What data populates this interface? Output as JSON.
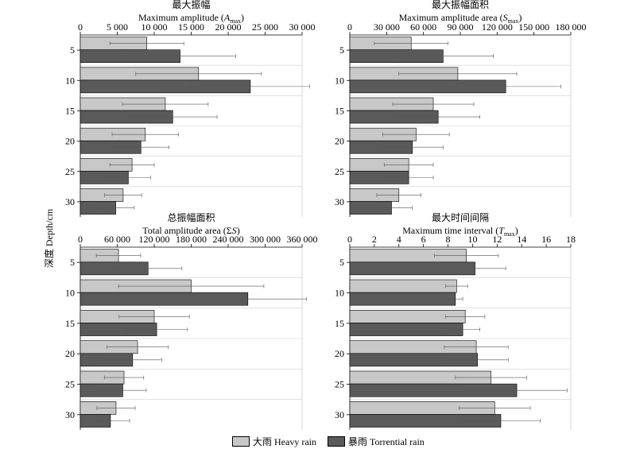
{
  "figure": {
    "y_axis_label": "深度 Depth/cm"
  },
  "legend": [
    {
      "label": "大雨 Heavy rain",
      "color": "#c8c8c8"
    },
    {
      "label": "暴雨 Torrential rain",
      "color": "#5a5a5a"
    }
  ],
  "chart_data": [
    {
      "type": "bar",
      "orientation": "horizontal",
      "title_cn": "最大振幅",
      "title_en": "Maximum amplitude (",
      "title_symbol": "A",
      "title_sub": "max",
      "title_tail": ")",
      "xlim": [
        0,
        30000
      ],
      "xticks": [
        0,
        5000,
        10000,
        15000,
        20000,
        25000,
        30000
      ],
      "xtick_labels": [
        "0",
        "5 000",
        "10 000",
        "15 000",
        "20 000",
        "25 000",
        "30 000"
      ],
      "categories": [
        "5",
        "10",
        "15",
        "20",
        "25",
        "30"
      ],
      "series": [
        {
          "name": "大雨 Heavy rain",
          "color": "#c8c8c8",
          "values": [
            9000,
            16000,
            11500,
            8800,
            7000,
            5800
          ],
          "errors": [
            5000,
            8500,
            5800,
            4500,
            3000,
            2500
          ]
        },
        {
          "name": "暴雨 Torrential rain",
          "color": "#5a5a5a",
          "values": [
            13500,
            23000,
            12500,
            8200,
            6500,
            4800
          ],
          "errors": [
            7500,
            8000,
            6000,
            3800,
            3000,
            2500
          ]
        }
      ]
    },
    {
      "type": "bar",
      "orientation": "horizontal",
      "title_cn": "最大振幅面积",
      "title_en": "Maximum amplitude area (",
      "title_symbol": "S",
      "title_sub": "max",
      "title_tail": ")",
      "xlim": [
        0,
        180000
      ],
      "xticks": [
        0,
        30000,
        60000,
        90000,
        120000,
        150000,
        180000
      ],
      "xtick_labels": [
        "0",
        "30 000",
        "60 000",
        "90 000",
        "120 000",
        "150 000",
        "180 000"
      ],
      "categories": [
        "5",
        "10",
        "15",
        "20",
        "25",
        "30"
      ],
      "series": [
        {
          "name": "大雨 Heavy rain",
          "color": "#c8c8c8",
          "values": [
            50000,
            88000,
            68000,
            54000,
            48000,
            40000
          ],
          "errors": [
            30000,
            48000,
            33000,
            27000,
            20000,
            18000
          ]
        },
        {
          "name": "暴雨 Torrential rain",
          "color": "#5a5a5a",
          "values": [
            76000,
            127000,
            72000,
            51000,
            48000,
            34000
          ],
          "errors": [
            41000,
            45000,
            34000,
            25000,
            20000,
            17000
          ]
        }
      ]
    },
    {
      "type": "bar",
      "orientation": "horizontal",
      "title_cn": "总振幅面积",
      "title_en": "Total amplitude area (Σ",
      "title_symbol": "S",
      "title_sub": "",
      "title_tail": ")",
      "xlim": [
        0,
        360000
      ],
      "xticks": [
        0,
        60000,
        120000,
        180000,
        240000,
        300000,
        360000
      ],
      "xtick_labels": [
        "0",
        "60 000",
        "120 000",
        "180 000",
        "240 000",
        "300 000",
        "360 000"
      ],
      "categories": [
        "5",
        "10",
        "15",
        "20",
        "25",
        "30"
      ],
      "series": [
        {
          "name": "大雨 Heavy rain",
          "color": "#c8c8c8",
          "values": [
            62000,
            180000,
            120000,
            93000,
            71000,
            58000
          ],
          "errors": [
            36000,
            118000,
            57000,
            50000,
            32000,
            31000
          ]
        },
        {
          "name": "暴雨 Torrential rain",
          "color": "#5a5a5a",
          "values": [
            110000,
            272000,
            124000,
            85000,
            69000,
            49000
          ],
          "errors": [
            55000,
            95000,
            50000,
            47000,
            38000,
            31000
          ]
        }
      ]
    },
    {
      "type": "bar",
      "orientation": "horizontal",
      "title_cn": "最大时间间隔",
      "title_en": "Maximum time interval (",
      "title_symbol": "T",
      "title_sub": "max",
      "title_tail": ")",
      "xlim": [
        0,
        18
      ],
      "xticks": [
        0,
        2,
        4,
        6,
        8,
        10,
        12,
        14,
        16,
        18
      ],
      "xtick_labels": [
        "0",
        "2",
        "4",
        "6",
        "8",
        "10",
        "12",
        "14",
        "16",
        "18"
      ],
      "categories": [
        "5",
        "10",
        "15",
        "20",
        "25",
        "30"
      ],
      "series": [
        {
          "name": "大雨 Heavy rain",
          "color": "#c8c8c8",
          "values": [
            9.5,
            8.7,
            9.4,
            10.3,
            11.5,
            11.8
          ],
          "errors": [
            2.6,
            0.9,
            1.6,
            2.6,
            2.9,
            2.9
          ]
        },
        {
          "name": "暴雨 Torrential rain",
          "color": "#5a5a5a",
          "values": [
            10.2,
            8.6,
            9.2,
            10.4,
            13.6,
            12.3
          ],
          "errors": [
            2.5,
            0.6,
            1.4,
            2.5,
            4.1,
            3.2
          ]
        }
      ]
    }
  ]
}
